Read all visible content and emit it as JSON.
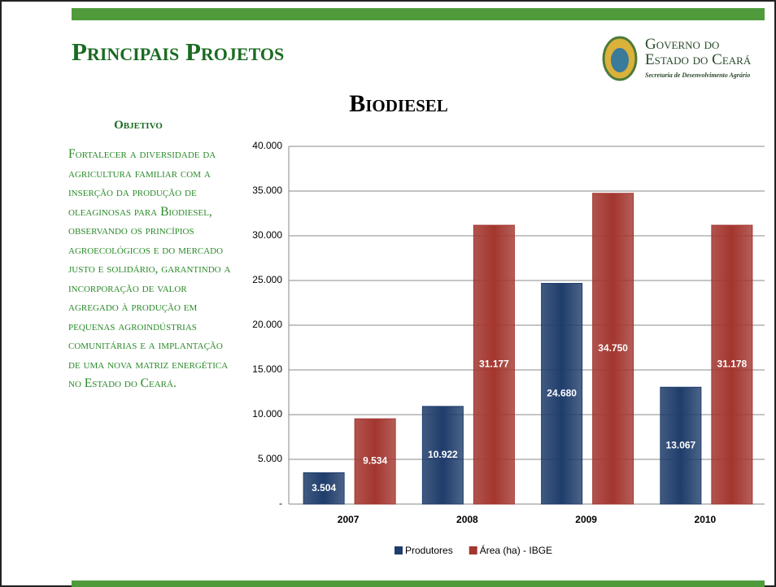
{
  "slide_title": "Principais Projetos",
  "logo": {
    "line1": "Governo do",
    "line2": "Estado do Ceará",
    "line3": "Secretaria de Desenvolvimento Agrário"
  },
  "objective": {
    "heading": "Objetivo",
    "text": "Fortalecer a diversidade da agricultura familiar com a inserção da produção de oleaginosas para Biodiesel, observando os princípios agroecológicos e do mercado justo e solidário, garantindo a incorporação de valor agregado à produção em pequenas agroindústrias comunitárias e a implantação de uma nova matriz energética no Estado do Ceará."
  },
  "chart_data": {
    "type": "bar",
    "title": "Biodiesel",
    "categories": [
      "2007",
      "2008",
      "2009",
      "2010"
    ],
    "series": [
      {
        "name": "Produtores",
        "color": "#1f3d6b",
        "values": [
          3504,
          10922,
          24680,
          13067
        ],
        "value_labels": [
          "3.504",
          "10.922",
          "24.680",
          "13.067"
        ]
      },
      {
        "name": "Área (ha) - IBGE",
        "color": "#a3362f",
        "values": [
          9534,
          31177,
          34750,
          31178
        ],
        "value_labels": [
          "9.534",
          "31.177",
          "34.750",
          "31.178"
        ]
      }
    ],
    "ylim": [
      0,
      40000
    ],
    "yticks": [
      {
        "value": 0,
        "label": "-"
      },
      {
        "value": 5000,
        "label": "5.000"
      },
      {
        "value": 10000,
        "label": "10.000"
      },
      {
        "value": 15000,
        "label": "15.000"
      },
      {
        "value": 20000,
        "label": "20.000"
      },
      {
        "value": 25000,
        "label": "25.000"
      },
      {
        "value": 30000,
        "label": "30.000"
      },
      {
        "value": 35000,
        "label": "35.000"
      },
      {
        "value": 40000,
        "label": "40.000"
      }
    ],
    "grid": true,
    "legend": "bottom"
  }
}
